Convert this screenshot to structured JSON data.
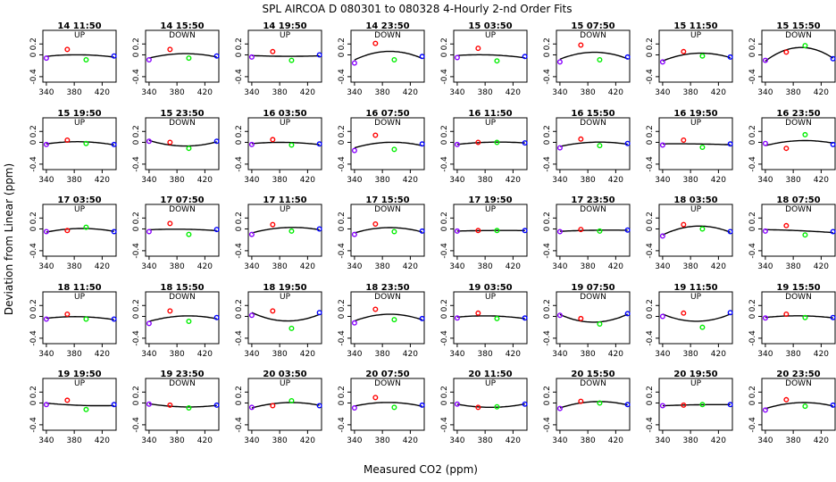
{
  "figure": {
    "title": "SPL   AIRCOA D   080301 to 080328   4-Hourly 2-nd Order Fits",
    "xlabel": "Measured CO2 (ppm)",
    "ylabel": "Deviation from Linear (ppm)"
  },
  "colors": {
    "low": "#8800ff",
    "mid_low": "#ff0000",
    "mid_high": "#00ee00",
    "high": "#0000ff",
    "fit": "#000000"
  },
  "chart_data": {
    "type": "scatter",
    "xlim": [
      335,
      440
    ],
    "ylim": [
      -0.5,
      0.45
    ],
    "x_ticks": [
      340,
      380,
      420
    ],
    "x_tick_labels_bottom": [
      "340",
      "380",
      "420"
    ],
    "x_tick_labels_inner": [
      "340",
      "380",
      "420"
    ],
    "y_ticks": [
      -0.4,
      0,
      0.2
    ],
    "y_tick_labels": [
      "-0.4",
      "0",
      "0.2"
    ],
    "standard_x": [
      340,
      370,
      397,
      437
    ],
    "panels": [
      {
        "title": "14 11:50",
        "direction": "UP",
        "y": [
          -0.06,
          0.1,
          -0.09,
          -0.02
        ]
      },
      {
        "title": "14 15:50",
        "direction": "DOWN",
        "y": [
          -0.09,
          0.1,
          -0.06,
          -0.02
        ]
      },
      {
        "title": "14 19:50",
        "direction": "UP",
        "y": [
          -0.04,
          0.06,
          -0.1,
          0.0
        ]
      },
      {
        "title": "14 23:50",
        "direction": "DOWN",
        "y": [
          -0.15,
          0.21,
          -0.09,
          -0.03
        ]
      },
      {
        "title": "15 03:50",
        "direction": "UP",
        "y": [
          -0.05,
          0.12,
          -0.11,
          -0.03
        ]
      },
      {
        "title": "15 07:50",
        "direction": "DOWN",
        "y": [
          -0.13,
          0.18,
          -0.09,
          -0.04
        ]
      },
      {
        "title": "15 11:50",
        "direction": "UP",
        "y": [
          -0.13,
          0.06,
          -0.02,
          -0.04
        ]
      },
      {
        "title": "15 15:50",
        "direction": "DOWN",
        "y": [
          -0.1,
          0.05,
          0.17,
          -0.07
        ]
      },
      {
        "title": "15 19:50",
        "direction": "UP",
        "y": [
          -0.04,
          0.04,
          -0.02,
          -0.04
        ]
      },
      {
        "title": "15 23:50",
        "direction": "DOWN",
        "y": [
          0.02,
          0.0,
          -0.11,
          0.02
        ]
      },
      {
        "title": "16 03:50",
        "direction": "UP",
        "y": [
          -0.04,
          0.05,
          -0.05,
          -0.03
        ]
      },
      {
        "title": "16 07:50",
        "direction": "DOWN",
        "y": [
          -0.15,
          0.13,
          -0.13,
          -0.03
        ]
      },
      {
        "title": "16 11:50",
        "direction": "UP",
        "y": [
          -0.04,
          0.0,
          0.0,
          -0.01
        ]
      },
      {
        "title": "16 15:50",
        "direction": "DOWN",
        "y": [
          -0.1,
          0.06,
          -0.06,
          -0.02
        ]
      },
      {
        "title": "16 19:50",
        "direction": "UP",
        "y": [
          -0.05,
          0.04,
          -0.09,
          -0.03
        ]
      },
      {
        "title": "16 23:50",
        "direction": "DOWN",
        "y": [
          -0.02,
          -0.11,
          0.14,
          -0.04
        ]
      },
      {
        "title": "17 03:50",
        "direction": "UP",
        "y": [
          -0.05,
          -0.03,
          0.03,
          -0.05
        ]
      },
      {
        "title": "17 07:50",
        "direction": "DOWN",
        "y": [
          -0.05,
          0.1,
          -0.1,
          -0.01
        ]
      },
      {
        "title": "17 11:50",
        "direction": "UP",
        "y": [
          -0.1,
          0.08,
          -0.04,
          0.0
        ]
      },
      {
        "title": "17 15:50",
        "direction": "DOWN",
        "y": [
          -0.1,
          0.09,
          -0.05,
          -0.04
        ]
      },
      {
        "title": "17 19:50",
        "direction": "UP",
        "y": [
          -0.04,
          -0.03,
          -0.03,
          -0.03
        ]
      },
      {
        "title": "17 23:50",
        "direction": "DOWN",
        "y": [
          -0.05,
          -0.01,
          -0.04,
          -0.02
        ]
      },
      {
        "title": "18 03:50",
        "direction": "UP",
        "y": [
          -0.13,
          0.08,
          0.0,
          -0.05
        ]
      },
      {
        "title": "18 07:50",
        "direction": "DOWN",
        "y": [
          -0.04,
          0.06,
          -0.11,
          -0.05
        ]
      },
      {
        "title": "18 11:50",
        "direction": "UP",
        "y": [
          -0.05,
          0.04,
          -0.05,
          -0.05
        ]
      },
      {
        "title": "18 15:50",
        "direction": "DOWN",
        "y": [
          -0.13,
          0.1,
          -0.09,
          -0.02
        ]
      },
      {
        "title": "18 19:50",
        "direction": "UP",
        "y": [
          0.02,
          0.1,
          -0.22,
          0.07
        ]
      },
      {
        "title": "18 23:50",
        "direction": "DOWN",
        "y": [
          -0.12,
          0.13,
          -0.06,
          -0.04
        ]
      },
      {
        "title": "19 03:50",
        "direction": "UP",
        "y": [
          -0.03,
          0.06,
          -0.04,
          -0.03
        ]
      },
      {
        "title": "19 07:50",
        "direction": "DOWN",
        "y": [
          0.02,
          -0.04,
          -0.14,
          0.05
        ]
      },
      {
        "title": "19 11:50",
        "direction": "UP",
        "y": [
          0.0,
          0.06,
          -0.2,
          0.07
        ]
      },
      {
        "title": "19 15:50",
        "direction": "DOWN",
        "y": [
          -0.03,
          0.04,
          -0.02,
          -0.02
        ]
      },
      {
        "title": "19 19:50",
        "direction": "UP",
        "y": [
          -0.03,
          0.05,
          -0.12,
          -0.03
        ]
      },
      {
        "title": "19 23:50",
        "direction": "DOWN",
        "y": [
          -0.02,
          -0.04,
          -0.09,
          -0.04
        ]
      },
      {
        "title": "20 03:50",
        "direction": "UP",
        "y": [
          -0.08,
          -0.05,
          0.04,
          -0.05
        ]
      },
      {
        "title": "20 07:50",
        "direction": "DOWN",
        "y": [
          -0.09,
          0.1,
          -0.08,
          -0.04
        ]
      },
      {
        "title": "20 11:50",
        "direction": "UP",
        "y": [
          -0.02,
          -0.08,
          -0.07,
          -0.02
        ]
      },
      {
        "title": "20 15:50",
        "direction": "DOWN",
        "y": [
          -0.1,
          0.03,
          0.0,
          -0.03
        ]
      },
      {
        "title": "20 19:50",
        "direction": "UP",
        "y": [
          -0.05,
          -0.04,
          -0.03,
          -0.03
        ]
      },
      {
        "title": "20 23:50",
        "direction": "DOWN",
        "y": [
          -0.13,
          0.06,
          -0.06,
          -0.04
        ]
      }
    ]
  }
}
